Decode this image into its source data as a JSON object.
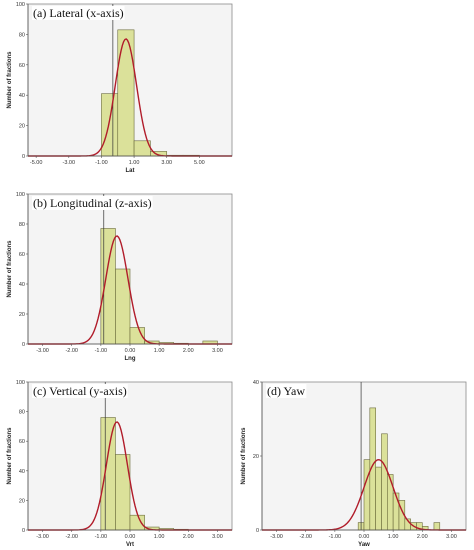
{
  "chart_data": [
    {
      "type": "bar",
      "title": "(a) Lateral (x-axis)",
      "xlabel": "Lat",
      "ylabel": "Number of fractions",
      "xlim": [
        -5.5,
        7
      ],
      "ylim": [
        0,
        100
      ],
      "yticks": [
        0,
        20,
        40,
        60,
        80,
        100
      ],
      "xticks": [
        -5,
        -3,
        -1,
        1,
        3,
        5
      ],
      "xtick_labels": [
        "-5.00",
        "-3.00",
        "-1.00",
        "1.00",
        "3.00",
        "5.00"
      ],
      "ref_line_x": -0.3,
      "bin_width": 1,
      "bins": [
        {
          "start": -1,
          "count": 41
        },
        {
          "start": 0,
          "count": 83
        },
        {
          "start": 1,
          "count": 10
        },
        {
          "start": 2,
          "count": 3
        },
        {
          "start": 3,
          "count": 0.5
        },
        {
          "start": 4,
          "count": 0.5
        }
      ],
      "normal_curve": {
        "mean": 0.5,
        "sd": 0.65,
        "peak": 77
      },
      "colors": {
        "bar": "#dbe19a",
        "curve": "#b11c2a"
      }
    },
    {
      "type": "bar",
      "title": "(b) Longitudinal (z-axis)",
      "xlabel": "Lng",
      "ylabel": "Number of fractions",
      "xlim": [
        -3.5,
        3.5
      ],
      "ylim": [
        0,
        100
      ],
      "yticks": [
        0,
        20,
        40,
        60,
        80,
        100
      ],
      "xticks": [
        -3,
        -2,
        -1,
        0,
        1,
        2,
        3
      ],
      "xtick_labels": [
        "-3.00",
        "-2.00",
        "-1.00",
        "0.00",
        "1.00",
        "2.00",
        "3.00"
      ],
      "ref_line_x": -0.9,
      "bin_width": 0.5,
      "bins": [
        {
          "start": -1,
          "count": 77
        },
        {
          "start": -0.5,
          "count": 50
        },
        {
          "start": 0,
          "count": 11
        },
        {
          "start": 0.5,
          "count": 2
        },
        {
          "start": 1,
          "count": 1
        },
        {
          "start": 1.5,
          "count": 0.5
        },
        {
          "start": 2.5,
          "count": 2
        }
      ],
      "normal_curve": {
        "mean": -0.45,
        "sd": 0.38,
        "peak": 72
      },
      "colors": {
        "bar": "#dbe19a",
        "curve": "#b11c2a"
      }
    },
    {
      "type": "bar",
      "title": "(c) Vertical (y-axis)",
      "xlabel": "Vrt",
      "ylabel": "Number of fractions",
      "xlim": [
        -3.5,
        3.5
      ],
      "ylim": [
        0,
        100
      ],
      "yticks": [
        0,
        20,
        40,
        60,
        80,
        100
      ],
      "xticks": [
        -3,
        -2,
        -1,
        0,
        1,
        2,
        3
      ],
      "xtick_labels": [
        "-3.00",
        "-2.00",
        "-1.00",
        "0.00",
        "1.00",
        "2.00",
        "3.00"
      ],
      "ref_line_x": -0.85,
      "bin_width": 0.5,
      "bins": [
        {
          "start": -1,
          "count": 76
        },
        {
          "start": -0.5,
          "count": 51
        },
        {
          "start": 0,
          "count": 10
        },
        {
          "start": 0.5,
          "count": 2
        },
        {
          "start": 1,
          "count": 1
        },
        {
          "start": 1.5,
          "count": 0.5
        }
      ],
      "normal_curve": {
        "mean": -0.45,
        "sd": 0.36,
        "peak": 73
      },
      "colors": {
        "bar": "#dbe19a",
        "curve": "#b11c2a"
      }
    },
    {
      "type": "bar",
      "title": "(d) Yaw",
      "xlabel": "Yaw",
      "ylabel": "Number of fractions",
      "xlim": [
        -3.5,
        3.5
      ],
      "ylim": [
        0,
        40
      ],
      "yticks": [
        0,
        20,
        40
      ],
      "xticks": [
        -3,
        -2,
        -1,
        0,
        1,
        2,
        3
      ],
      "xtick_labels": [
        "-3.00",
        "-2.00",
        "-1.00",
        "0.00",
        "1.00",
        "2.00",
        "3.00"
      ],
      "ref_line_x": -0.1,
      "bin_width": 0.2,
      "bins": [
        {
          "start": -0.2,
          "count": 2
        },
        {
          "start": 0,
          "count": 19
        },
        {
          "start": 0.2,
          "count": 33
        },
        {
          "start": 0.4,
          "count": 17
        },
        {
          "start": 0.6,
          "count": 26
        },
        {
          "start": 0.8,
          "count": 15
        },
        {
          "start": 1.0,
          "count": 10
        },
        {
          "start": 1.2,
          "count": 8
        },
        {
          "start": 1.4,
          "count": 3
        },
        {
          "start": 1.6,
          "count": 2
        },
        {
          "start": 1.8,
          "count": 2
        },
        {
          "start": 2.0,
          "count": 1
        },
        {
          "start": 2.4,
          "count": 2
        }
      ],
      "normal_curve": {
        "mean": 0.5,
        "sd": 0.5,
        "peak": 19
      },
      "colors": {
        "bar": "#dbe19a",
        "curve": "#b11c2a"
      }
    }
  ]
}
